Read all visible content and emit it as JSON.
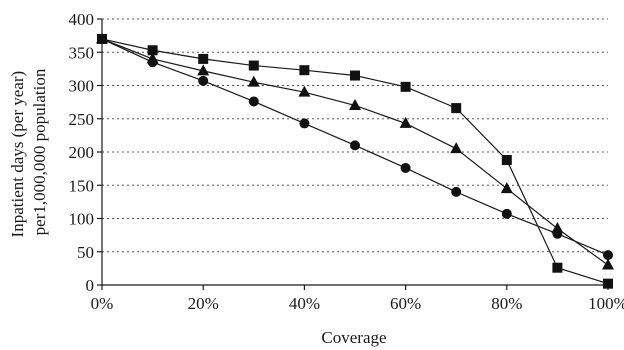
{
  "chart_data": {
    "type": "line",
    "title": "",
    "xlabel": "Coverage",
    "ylabel_lines": [
      "Inpatient days (per year)",
      "per1,000,000 population"
    ],
    "x": [
      0,
      10,
      20,
      30,
      40,
      50,
      60,
      70,
      80,
      90,
      100
    ],
    "x_tick_values": [
      0,
      20,
      40,
      60,
      80,
      100
    ],
    "x_tick_labels": [
      "0%",
      "20%",
      "40%",
      "60%",
      "80%",
      "100%"
    ],
    "xlim": [
      0,
      100
    ],
    "y_tick_values": [
      0,
      50,
      100,
      150,
      200,
      250,
      300,
      350,
      400
    ],
    "y_tick_labels": [
      "0",
      "50",
      "100",
      "150",
      "200",
      "250",
      "300",
      "350",
      "400"
    ],
    "ylim": [
      0,
      400
    ],
    "grid": "horizontal dotted",
    "legend": "none",
    "line_color": "#1a1a1a",
    "series": [
      {
        "marker": "square",
        "values": [
          370,
          353,
          340,
          330,
          323,
          315,
          298,
          266,
          188,
          26,
          2
        ]
      },
      {
        "marker": "triangle",
        "values": [
          370,
          340,
          322,
          305,
          290,
          270,
          243,
          205,
          145,
          85,
          30
        ]
      },
      {
        "marker": "circle",
        "values": [
          370,
          335,
          307,
          276,
          243,
          210,
          176,
          140,
          107,
          77,
          45
        ]
      }
    ]
  }
}
